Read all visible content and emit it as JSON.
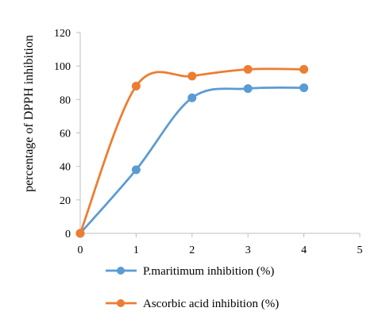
{
  "chart_data": {
    "type": "line",
    "title": "",
    "xlabel": "",
    "ylabel": "percentage of DPPH inhibition",
    "xlim": [
      0,
      5
    ],
    "ylim": [
      0,
      120
    ],
    "x_ticks": [
      0,
      1,
      2,
      3,
      4,
      5
    ],
    "y_ticks": [
      0,
      20,
      40,
      60,
      80,
      100,
      120
    ],
    "grid": false,
    "smoothed": true,
    "legend_position": "bottom",
    "series": [
      {
        "name": "P.maritimum inhibition (%)",
        "color": "#5b9bd5",
        "x": [
          0,
          1,
          2,
          3,
          4
        ],
        "values": [
          0,
          38,
          81,
          86.5,
          87
        ]
      },
      {
        "name": "Ascorbic acid inhibition (%)",
        "color": "#ed7d31",
        "x": [
          0,
          1,
          2,
          3,
          4
        ],
        "values": [
          0,
          88,
          94,
          98,
          98
        ]
      }
    ]
  }
}
